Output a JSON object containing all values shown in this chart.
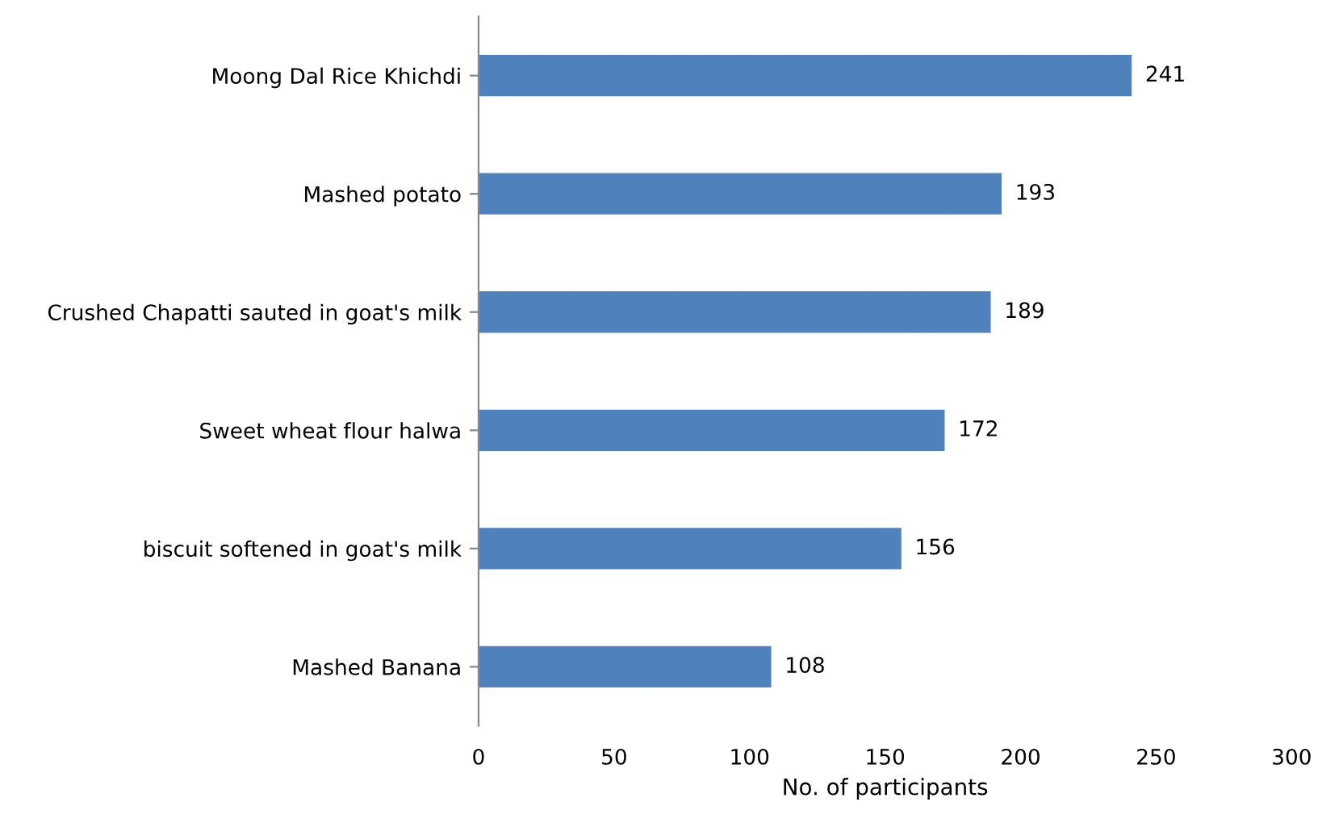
{
  "chart_data": {
    "type": "bar",
    "orientation": "horizontal",
    "xlabel": "No. of participants",
    "categories": [
      "Moong Dal Rice Khichdi",
      "Mashed potato",
      "Crushed Chapatti sauted in goat's milk",
      "Sweet wheat flour halwa",
      "biscuit softened in goat's milk",
      "Mashed Banana"
    ],
    "values": [
      241,
      193,
      189,
      172,
      156,
      108
    ],
    "color": "#4f81bd",
    "xlim": [
      0,
      300
    ],
    "xticks": [
      0,
      50,
      100,
      150,
      200,
      250,
      300
    ],
    "grid": false,
    "data_labels": true
  }
}
